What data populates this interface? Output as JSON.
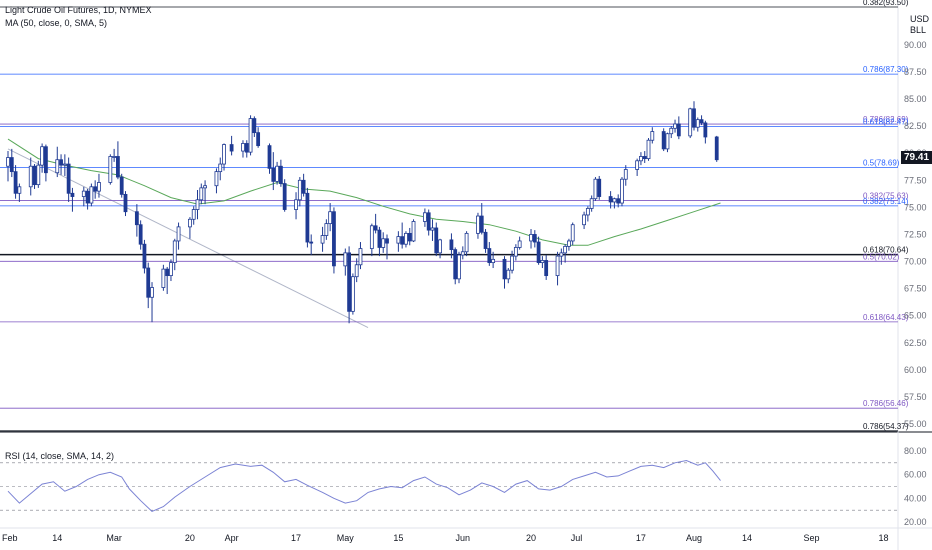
{
  "header": {
    "title": "Light Crude Oil Futures, 1D, NYMEX",
    "ma_label": "MA (50, close, 0, SMA, 5)",
    "rsi_label": "RSI (14, close, SMA, 14, 2)"
  },
  "price_unit": [
    "USD",
    "BLL"
  ],
  "last_price": "79.41",
  "colors": {
    "candle": "#1f3a93",
    "ma": "#5aa85a",
    "rsi": "#7b83d4",
    "fib_blue": "#2962ff",
    "fib_purple": "#7e57c2",
    "fib_black": "#131722",
    "trendline": "#b0b6c8"
  },
  "chart_data": {
    "type": "candlestick",
    "price_axis": {
      "ticks": [
        90.0,
        87.5,
        85.0,
        82.5,
        80.0,
        77.5,
        75.0,
        72.5,
        70.0,
        67.5,
        65.0,
        62.5,
        60.0,
        57.5,
        55.0
      ],
      "ylim": [
        53.8,
        94.0
      ]
    },
    "rsi_axis": {
      "ticks": [
        80.0,
        60.0,
        40.0,
        20.0
      ],
      "ylim": [
        16,
        86
      ],
      "bands": [
        70,
        50,
        30
      ]
    },
    "x_axis": {
      "labels": [
        "Feb",
        "14",
        "Mar",
        "20",
        "Apr",
        "17",
        "May",
        "15",
        "Jun",
        "20",
        "Jul",
        "17",
        "Aug",
        "14",
        "Sep",
        "18"
      ],
      "label_days": [
        0,
        13,
        28,
        48,
        59,
        76,
        89,
        103,
        120,
        138,
        150,
        167,
        181,
        195,
        212,
        231
      ]
    },
    "fib_levels": [
      {
        "label": "0.382(93.50)",
        "value": 93.5,
        "color": "black",
        "lw": 0.8
      },
      {
        "label": "0.786(87.30)",
        "value": 87.3,
        "color": "blue",
        "lw": 0.8
      },
      {
        "label": "0.786(82.69)",
        "value": 82.69,
        "color": "purple",
        "lw": 0.8
      },
      {
        "label": "0.618(82.47)",
        "value": 82.47,
        "color": "blue",
        "lw": 0.8
      },
      {
        "label": "0.5(78.69)",
        "value": 78.69,
        "color": "blue",
        "lw": 0.8
      },
      {
        "label": "0.382(75.63)",
        "value": 75.63,
        "color": "purple",
        "lw": 0.8
      },
      {
        "label": "0.382(75.14)",
        "value": 75.14,
        "color": "blue",
        "lw": 0.8
      },
      {
        "label": "0.618(70.64)",
        "value": 70.64,
        "color": "black",
        "lw": 1.5
      },
      {
        "label": "0.5(70.02)",
        "value": 70.02,
        "color": "purple",
        "lw": 0.8
      },
      {
        "label": "0.618(64.43)",
        "value": 64.43,
        "color": "purple",
        "lw": 0.8
      },
      {
        "label": "0.786(56.46)",
        "value": 56.46,
        "color": "purple",
        "lw": 0.8
      },
      {
        "label": "0.786(54.37)",
        "value": 54.37,
        "color": "black",
        "lw": 1.0
      }
    ],
    "trendline": {
      "start_day": 0,
      "start_value": 80.4,
      "end_day": 95,
      "end_value": 63.9
    },
    "candles": [
      [
        0,
        78.8,
        80.2,
        77.4,
        79.6
      ],
      [
        1,
        79.6,
        80.4,
        77.8,
        78.3
      ],
      [
        2,
        78.3,
        78.9,
        75.8,
        76.3
      ],
      [
        3,
        76.3,
        77.2,
        75.5,
        76.9
      ],
      [
        6,
        76.9,
        79.6,
        76.1,
        78.8
      ],
      [
        7,
        78.8,
        79.0,
        76.7,
        77.1
      ],
      [
        8,
        77.1,
        79.3,
        76.8,
        78.9
      ],
      [
        9,
        78.9,
        80.9,
        78.2,
        80.6
      ],
      [
        10,
        80.6,
        80.8,
        77.4,
        78.2
      ],
      [
        13,
        78.2,
        80.6,
        77.8,
        79.4
      ],
      [
        14,
        79.4,
        79.9,
        78.0,
        78.9
      ],
      [
        15,
        78.9,
        79.9,
        77.9,
        79.0
      ],
      [
        16,
        79.0,
        79.6,
        75.5,
        76.3
      ],
      [
        17,
        76.3,
        76.8,
        74.6,
        76.0
      ],
      [
        20,
        76.0,
        76.9,
        75.1,
        76.5
      ],
      [
        21,
        76.5,
        76.7,
        74.8,
        75.4
      ],
      [
        22,
        75.4,
        77.2,
        75.1,
        76.9
      ],
      [
        23,
        76.9,
        77.5,
        75.8,
        76.5
      ],
      [
        24,
        76.5,
        78.1,
        75.9,
        77.3
      ],
      [
        27,
        77.3,
        79.9,
        77.1,
        79.7
      ],
      [
        28,
        79.7,
        80.4,
        79.2,
        79.7
      ],
      [
        29,
        79.7,
        81.1,
        77.6,
        77.8
      ],
      [
        30,
        77.8,
        78.1,
        75.9,
        76.2
      ],
      [
        31,
        76.2,
        76.5,
        74.2,
        74.6
      ],
      [
        34,
        74.6,
        75.3,
        72.3,
        73.4
      ],
      [
        35,
        73.4,
        73.8,
        71.1,
        71.6
      ],
      [
        36,
        71.6,
        72.0,
        68.9,
        69.4
      ],
      [
        37,
        69.4,
        69.9,
        65.7,
        66.7
      ],
      [
        38,
        66.7,
        68.1,
        64.4,
        67.6
      ],
      [
        41,
        67.6,
        69.7,
        67.3,
        69.3
      ],
      [
        42,
        69.3,
        69.5,
        67.0,
        68.7
      ],
      [
        43,
        68.7,
        70.2,
        68.2,
        69.9
      ],
      [
        44,
        69.9,
        72.1,
        69.2,
        71.9
      ],
      [
        45,
        71.9,
        73.6,
        71.1,
        73.2
      ],
      [
        48,
        73.2,
        74.1,
        72.1,
        73.9
      ],
      [
        49,
        73.9,
        75.1,
        73.4,
        74.8
      ],
      [
        50,
        74.8,
        76.6,
        73.9,
        75.7
      ],
      [
        51,
        75.7,
        77.2,
        75.3,
        76.8
      ],
      [
        52,
        76.8,
        77.5,
        75.3,
        77.0
      ],
      [
        55,
        77.0,
        78.6,
        76.3,
        78.3
      ],
      [
        56,
        78.3,
        79.6,
        77.5,
        79.0
      ],
      [
        57,
        79.0,
        80.9,
        78.4,
        80.8
      ],
      [
        59,
        80.8,
        81.6,
        79.8,
        80.2
      ],
      [
        62,
        80.2,
        81.2,
        79.6,
        80.9
      ],
      [
        63,
        80.9,
        81.2,
        79.6,
        80.1
      ],
      [
        64,
        80.1,
        83.5,
        79.8,
        83.2
      ],
      [
        65,
        83.2,
        83.4,
        81.5,
        81.9
      ],
      [
        66,
        81.9,
        82.4,
        80.5,
        80.7
      ],
      [
        69,
        80.7,
        80.9,
        78.1,
        78.6
      ],
      [
        70,
        78.6,
        80.1,
        76.6,
        77.4
      ],
      [
        71,
        77.4,
        79.2,
        77.1,
        78.8
      ],
      [
        72,
        78.8,
        79.4,
        76.9,
        77.2
      ],
      [
        73,
        77.2,
        77.6,
        74.6,
        74.8
      ],
      [
        76,
        74.8,
        76.4,
        73.9,
        75.7
      ],
      [
        77,
        75.7,
        77.8,
        75.1,
        77.5
      ],
      [
        78,
        77.5,
        78.1,
        76.0,
        76.3
      ],
      [
        79,
        76.3,
        76.8,
        71.3,
        71.8
      ],
      [
        80,
        71.8,
        72.5,
        70.6,
        71.7
      ],
      [
        83,
        71.7,
        73.2,
        70.9,
        72.4
      ],
      [
        84,
        72.4,
        73.9,
        72.0,
        73.5
      ],
      [
        85,
        73.5,
        75.4,
        72.8,
        74.6
      ],
      [
        86,
        74.6,
        75.0,
        68.9,
        69.6
      ],
      [
        89,
        69.6,
        71.2,
        68.7,
        70.8
      ],
      [
        90,
        70.8,
        71.4,
        64.3,
        65.4
      ],
      [
        91,
        65.4,
        68.9,
        65.1,
        68.6
      ],
      [
        92,
        68.6,
        70.3,
        68.1,
        69.7
      ],
      [
        93,
        69.7,
        71.8,
        69.3,
        71.2
      ],
      [
        96,
        71.2,
        73.5,
        70.5,
        73.3
      ],
      [
        97,
        73.3,
        74.4,
        72.6,
        72.9
      ],
      [
        98,
        72.9,
        73.2,
        70.5,
        71.3
      ],
      [
        99,
        71.3,
        72.7,
        70.8,
        72.1
      ],
      [
        100,
        72.1,
        72.5,
        70.2,
        71.7
      ],
      [
        103,
        71.7,
        72.8,
        70.9,
        72.3
      ],
      [
        104,
        72.3,
        73.6,
        71.2,
        71.6
      ],
      [
        105,
        71.6,
        72.8,
        71.3,
        72.6
      ],
      [
        106,
        72.6,
        73.1,
        71.5,
        71.9
      ],
      [
        107,
        71.9,
        73.9,
        71.8,
        73.7
      ],
      [
        110,
        73.7,
        74.9,
        73.2,
        74.5
      ],
      [
        111,
        74.5,
        74.8,
        72.4,
        72.9
      ],
      [
        112,
        72.9,
        73.9,
        71.9,
        73.1
      ],
      [
        113,
        73.1,
        73.6,
        70.5,
        70.8
      ],
      [
        114,
        70.8,
        72.1,
        70.3,
        72.0
      ],
      [
        117,
        72.0,
        72.6,
        70.3,
        71.1
      ],
      [
        118,
        71.1,
        71.3,
        67.9,
        68.4
      ],
      [
        119,
        68.4,
        70.9,
        68.0,
        70.6
      ],
      [
        120,
        70.6,
        71.4,
        70.2,
        70.9
      ],
      [
        121,
        70.9,
        72.8,
        70.5,
        72.6
      ],
      [
        124,
        72.6,
        74.5,
        72.1,
        74.2
      ],
      [
        125,
        74.2,
        75.4,
        72.5,
        72.7
      ],
      [
        126,
        72.7,
        73.0,
        70.8,
        71.2
      ],
      [
        127,
        71.2,
        71.8,
        69.6,
        69.9
      ],
      [
        128,
        69.9,
        70.9,
        69.4,
        70.2
      ],
      [
        131,
        70.2,
        70.5,
        67.5,
        68.4
      ],
      [
        132,
        68.4,
        69.4,
        68.0,
        69.2
      ],
      [
        133,
        69.2,
        71.0,
        68.9,
        70.5
      ],
      [
        134,
        70.5,
        71.6,
        70.1,
        71.3
      ],
      [
        135,
        71.3,
        72.3,
        71.1,
        71.9
      ],
      [
        138,
        71.9,
        73.0,
        71.2,
        72.5
      ],
      [
        139,
        72.5,
        72.9,
        71.3,
        71.8
      ],
      [
        140,
        71.8,
        72.3,
        69.7,
        69.9
      ],
      [
        141,
        69.9,
        70.5,
        69.4,
        70.1
      ],
      [
        142,
        70.1,
        70.6,
        68.3,
        68.7
      ],
      [
        145,
        68.7,
        70.9,
        67.8,
        70.5
      ],
      [
        146,
        70.5,
        71.2,
        69.7,
        70.8
      ],
      [
        147,
        70.8,
        71.6,
        69.9,
        71.4
      ],
      [
        148,
        71.4,
        72.1,
        71.0,
        71.9
      ],
      [
        149,
        71.9,
        73.6,
        71.5,
        73.4
      ],
      [
        152,
        73.4,
        74.6,
        73.0,
        74.3
      ],
      [
        153,
        74.3,
        75.1,
        73.7,
        74.9
      ],
      [
        154,
        74.9,
        76.1,
        74.6,
        75.8
      ],
      [
        155,
        75.8,
        77.8,
        75.6,
        77.6
      ],
      [
        156,
        77.6,
        77.9,
        75.7,
        76.0
      ],
      [
        159,
        76.0,
        76.5,
        74.9,
        75.5
      ],
      [
        160,
        75.5,
        75.9,
        74.9,
        75.8
      ],
      [
        161,
        75.8,
        76.2,
        75.0,
        75.4
      ],
      [
        162,
        75.4,
        77.8,
        75.1,
        77.6
      ],
      [
        163,
        77.6,
        78.9,
        77.0,
        78.5
      ],
      [
        166,
        78.5,
        79.5,
        77.9,
        79.3
      ],
      [
        167,
        79.3,
        80.1,
        78.9,
        79.7
      ],
      [
        168,
        79.7,
        80.2,
        79.1,
        79.5
      ],
      [
        169,
        79.5,
        81.4,
        79.3,
        81.2
      ],
      [
        170,
        81.2,
        82.4,
        80.9,
        82.0
      ],
      [
        173,
        82.0,
        82.3,
        80.2,
        80.4
      ],
      [
        174,
        80.4,
        81.9,
        80.1,
        81.8
      ],
      [
        175,
        81.8,
        82.5,
        81.4,
        82.3
      ],
      [
        176,
        82.3,
        83.1,
        81.9,
        82.7
      ],
      [
        177,
        82.7,
        83.4,
        81.3,
        81.6
      ],
      [
        180,
        81.6,
        84.2,
        81.4,
        84.1
      ],
      [
        181,
        84.1,
        84.8,
        82.1,
        82.4
      ],
      [
        182,
        82.4,
        83.3,
        82.0,
        83.1
      ],
      [
        183,
        83.1,
        83.5,
        82.6,
        82.8
      ],
      [
        184,
        82.8,
        83.0,
        80.9,
        81.5
      ],
      [
        187,
        81.5,
        81.6,
        79.2,
        79.4
      ]
    ],
    "ma": [
      [
        0,
        81.3
      ],
      [
        8,
        79.5
      ],
      [
        15,
        78.9
      ],
      [
        22,
        78.4
      ],
      [
        29,
        78.0
      ],
      [
        36,
        77.0
      ],
      [
        43,
        75.9
      ],
      [
        50,
        75.3
      ],
      [
        57,
        75.6
      ],
      [
        64,
        76.5
      ],
      [
        71,
        77.3
      ],
      [
        78,
        76.7
      ],
      [
        85,
        76.5
      ],
      [
        92,
        75.9
      ],
      [
        99,
        75.1
      ],
      [
        106,
        74.4
      ],
      [
        113,
        73.9
      ],
      [
        120,
        73.7
      ],
      [
        127,
        73.4
      ],
      [
        134,
        72.8
      ],
      [
        141,
        72.0
      ],
      [
        148,
        71.5
      ],
      [
        153,
        71.5
      ],
      [
        160,
        72.3
      ],
      [
        167,
        73.0
      ],
      [
        174,
        73.8
      ],
      [
        181,
        74.6
      ],
      [
        188,
        75.4
      ]
    ],
    "rsi": [
      [
        0,
        46
      ],
      [
        3,
        36
      ],
      [
        6,
        44
      ],
      [
        9,
        52
      ],
      [
        12,
        54
      ],
      [
        15,
        46
      ],
      [
        18,
        50
      ],
      [
        21,
        56
      ],
      [
        24,
        60
      ],
      [
        27,
        62
      ],
      [
        30,
        58
      ],
      [
        32,
        48
      ],
      [
        35,
        38
      ],
      [
        38,
        29
      ],
      [
        41,
        33
      ],
      [
        44,
        41
      ],
      [
        48,
        50
      ],
      [
        52,
        58
      ],
      [
        56,
        66
      ],
      [
        60,
        69
      ],
      [
        64,
        67
      ],
      [
        67,
        68
      ],
      [
        70,
        62
      ],
      [
        73,
        54
      ],
      [
        76,
        56
      ],
      [
        79,
        51
      ],
      [
        83,
        45
      ],
      [
        86,
        40
      ],
      [
        89,
        36
      ],
      [
        92,
        38
      ],
      [
        95,
        45
      ],
      [
        98,
        48
      ],
      [
        101,
        50
      ],
      [
        104,
        49
      ],
      [
        107,
        55
      ],
      [
        110,
        58
      ],
      [
        113,
        52
      ],
      [
        116,
        49
      ],
      [
        119,
        43
      ],
      [
        122,
        47
      ],
      [
        125,
        53
      ],
      [
        128,
        50
      ],
      [
        131,
        45
      ],
      [
        134,
        52
      ],
      [
        137,
        55
      ],
      [
        140,
        48
      ],
      [
        143,
        47
      ],
      [
        146,
        50
      ],
      [
        149,
        56
      ],
      [
        152,
        59
      ],
      [
        155,
        62
      ],
      [
        158,
        58
      ],
      [
        161,
        59
      ],
      [
        164,
        63
      ],
      [
        167,
        67
      ],
      [
        170,
        68
      ],
      [
        173,
        66
      ],
      [
        176,
        70
      ],
      [
        179,
        72
      ],
      [
        182,
        68
      ],
      [
        184,
        70
      ],
      [
        186,
        63
      ],
      [
        188,
        55
      ]
    ]
  }
}
